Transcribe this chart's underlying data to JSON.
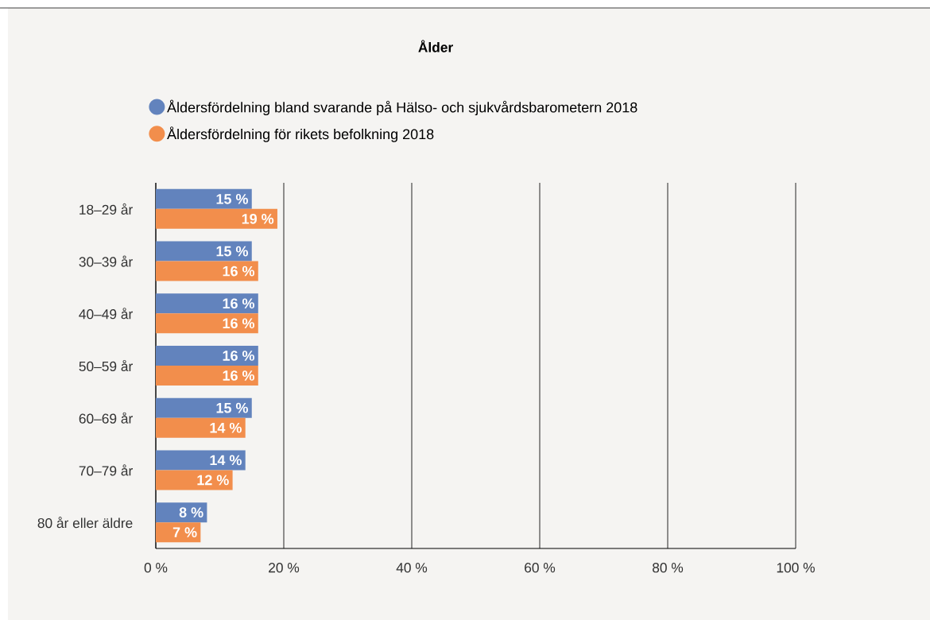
{
  "chart_data": {
    "type": "bar",
    "orientation": "horizontal",
    "title": "**Ålder**",
    "categories": [
      "18–29 år",
      "30–39 år",
      "40–49 år",
      "50–59 år",
      "60–69 år",
      "70–79 år",
      "80 år eller äldre"
    ],
    "series": [
      {
        "name": "Åldersfördelning bland svarande på Hälso- och sjukvårdsbarometern 2018",
        "color": "#6283bd",
        "values": [
          15,
          15,
          16,
          16,
          15,
          14,
          8
        ],
        "value_labels": [
          "15 %",
          "15 %",
          "16 %",
          "16 %",
          "15 %",
          "14 %",
          "8 %"
        ]
      },
      {
        "name": "Åldersfördelning för rikets befolkning 2018",
        "color": "#f28e4c",
        "values": [
          19,
          16,
          16,
          16,
          14,
          12,
          7
        ],
        "value_labels": [
          "19 %",
          "16 %",
          "16 %",
          "16 %",
          "14 %",
          "12 %",
          "7 %"
        ]
      }
    ],
    "xlim": [
      0,
      100
    ],
    "xticks": [
      {
        "value": 0,
        "label": "0 %"
      },
      {
        "value": 20,
        "label": "20 %"
      },
      {
        "value": 40,
        "label": "40 %"
      },
      {
        "value": 60,
        "label": "60 %"
      },
      {
        "value": 80,
        "label": "80 %"
      },
      {
        "value": 100,
        "label": "100 %"
      }
    ],
    "grid": "x",
    "legend": "top left"
  }
}
